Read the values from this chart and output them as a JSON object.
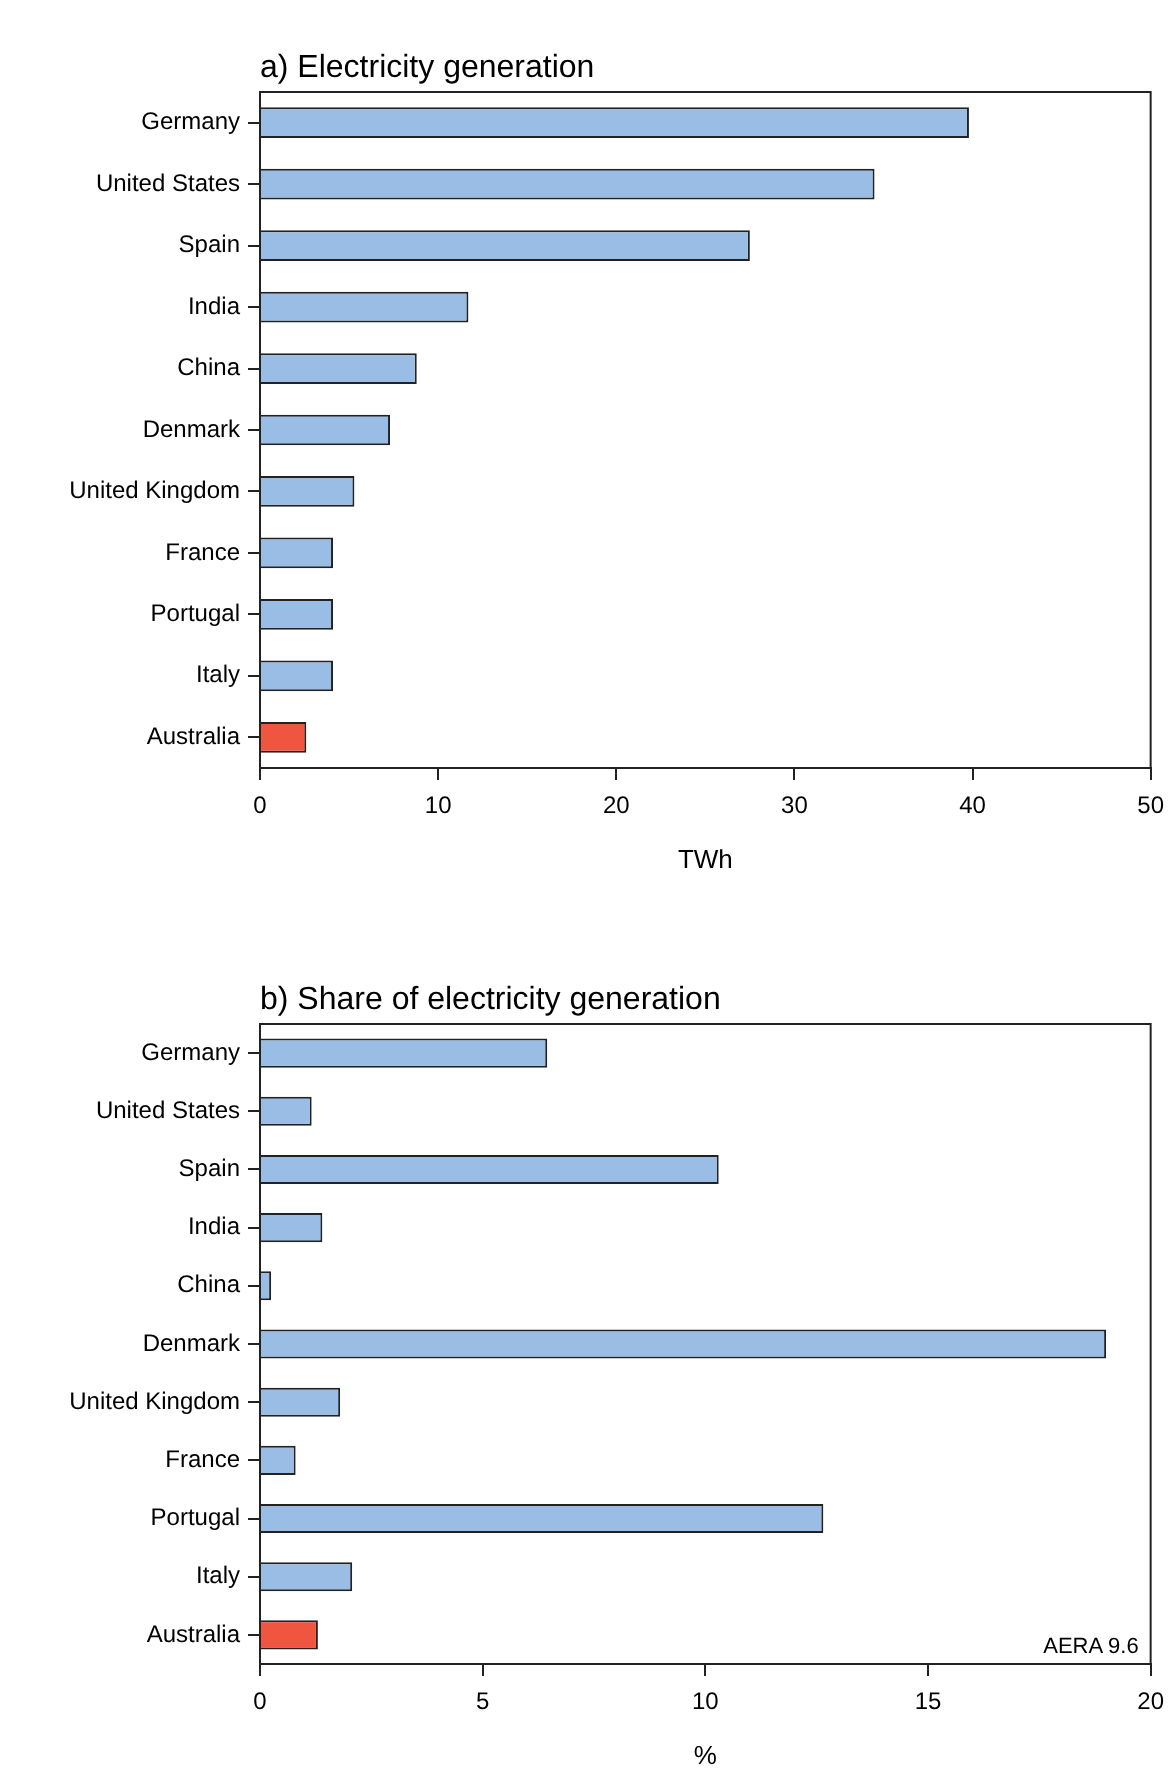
{
  "chart_data": [
    {
      "type": "bar",
      "orientation": "horizontal",
      "title": "a) Electricity generation",
      "xlabel": "TWh",
      "categories": [
        "Germany",
        "United States",
        "Spain",
        "India",
        "China",
        "Denmark",
        "United Kingdom",
        "France",
        "Portugal",
        "Italy",
        "Australia"
      ],
      "values": [
        39.8,
        34.5,
        27.5,
        11.7,
        8.8,
        7.3,
        5.3,
        4.1,
        4.1,
        4.1,
        2.6
      ],
      "colors": [
        "#99bde4",
        "#99bde4",
        "#99bde4",
        "#99bde4",
        "#99bde4",
        "#99bde4",
        "#99bde4",
        "#99bde4",
        "#99bde4",
        "#99bde4",
        "#f0553f"
      ],
      "xlim": [
        0,
        50
      ],
      "xticks": [
        0,
        10,
        20,
        30,
        40,
        50
      ],
      "grid": false,
      "legend": false
    },
    {
      "type": "bar",
      "orientation": "horizontal",
      "title": "b) Share of electricity generation",
      "xlabel": "%",
      "categories": [
        "Germany",
        "United States",
        "Spain",
        "India",
        "China",
        "Denmark",
        "United Kingdom",
        "France",
        "Portugal",
        "Italy",
        "Australia"
      ],
      "values": [
        6.45,
        1.16,
        10.3,
        1.4,
        0.25,
        19.0,
        1.8,
        0.8,
        12.65,
        2.07,
        1.3
      ],
      "colors": [
        "#99bde4",
        "#99bde4",
        "#99bde4",
        "#99bde4",
        "#99bde4",
        "#99bde4",
        "#99bde4",
        "#99bde4",
        "#99bde4",
        "#99bde4",
        "#f0553f"
      ],
      "xlim": [
        0,
        20
      ],
      "xticks": [
        0,
        5,
        10,
        15,
        20
      ],
      "grid": false,
      "legend": false,
      "annotations": [
        "AERA 9.6"
      ]
    }
  ]
}
